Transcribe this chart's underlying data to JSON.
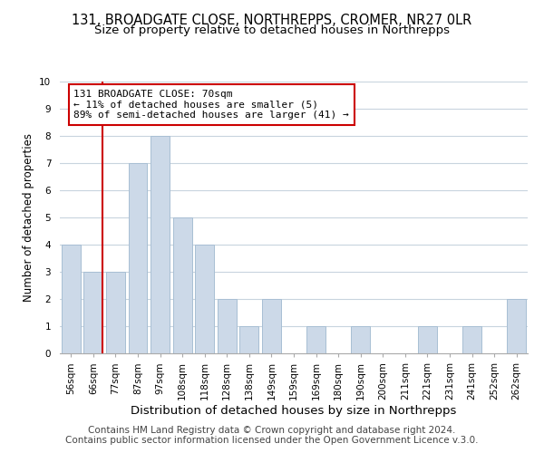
{
  "title": "131, BROADGATE CLOSE, NORTHREPPS, CROMER, NR27 0LR",
  "subtitle": "Size of property relative to detached houses in Northrepps",
  "xlabel": "Distribution of detached houses by size in Northrepps",
  "ylabel": "Number of detached properties",
  "bins": [
    "56sqm",
    "66sqm",
    "77sqm",
    "87sqm",
    "97sqm",
    "108sqm",
    "118sqm",
    "128sqm",
    "138sqm",
    "149sqm",
    "159sqm",
    "169sqm",
    "180sqm",
    "190sqm",
    "200sqm",
    "211sqm",
    "221sqm",
    "231sqm",
    "241sqm",
    "252sqm",
    "262sqm"
  ],
  "counts": [
    4,
    3,
    3,
    7,
    8,
    5,
    4,
    2,
    1,
    2,
    0,
    1,
    0,
    1,
    0,
    0,
    1,
    0,
    1,
    0,
    2
  ],
  "bar_color": "#ccd9e8",
  "bar_edge_color": "#a8bfd4",
  "grid_color": "#c8d4de",
  "ref_line_color": "#cc0000",
  "annotation_text": "131 BROADGATE CLOSE: 70sqm\n← 11% of detached houses are smaller (5)\n89% of semi-detached houses are larger (41) →",
  "annotation_box_color": "#ffffff",
  "annotation_box_edge": "#cc0000",
  "ylim": [
    0,
    10
  ],
  "footer1": "Contains HM Land Registry data © Crown copyright and database right 2024.",
  "footer2": "Contains public sector information licensed under the Open Government Licence v.3.0.",
  "title_fontsize": 10.5,
  "subtitle_fontsize": 9.5,
  "xlabel_fontsize": 9.5,
  "ylabel_fontsize": 8.5,
  "tick_fontsize": 7.5,
  "footer_fontsize": 7.5
}
